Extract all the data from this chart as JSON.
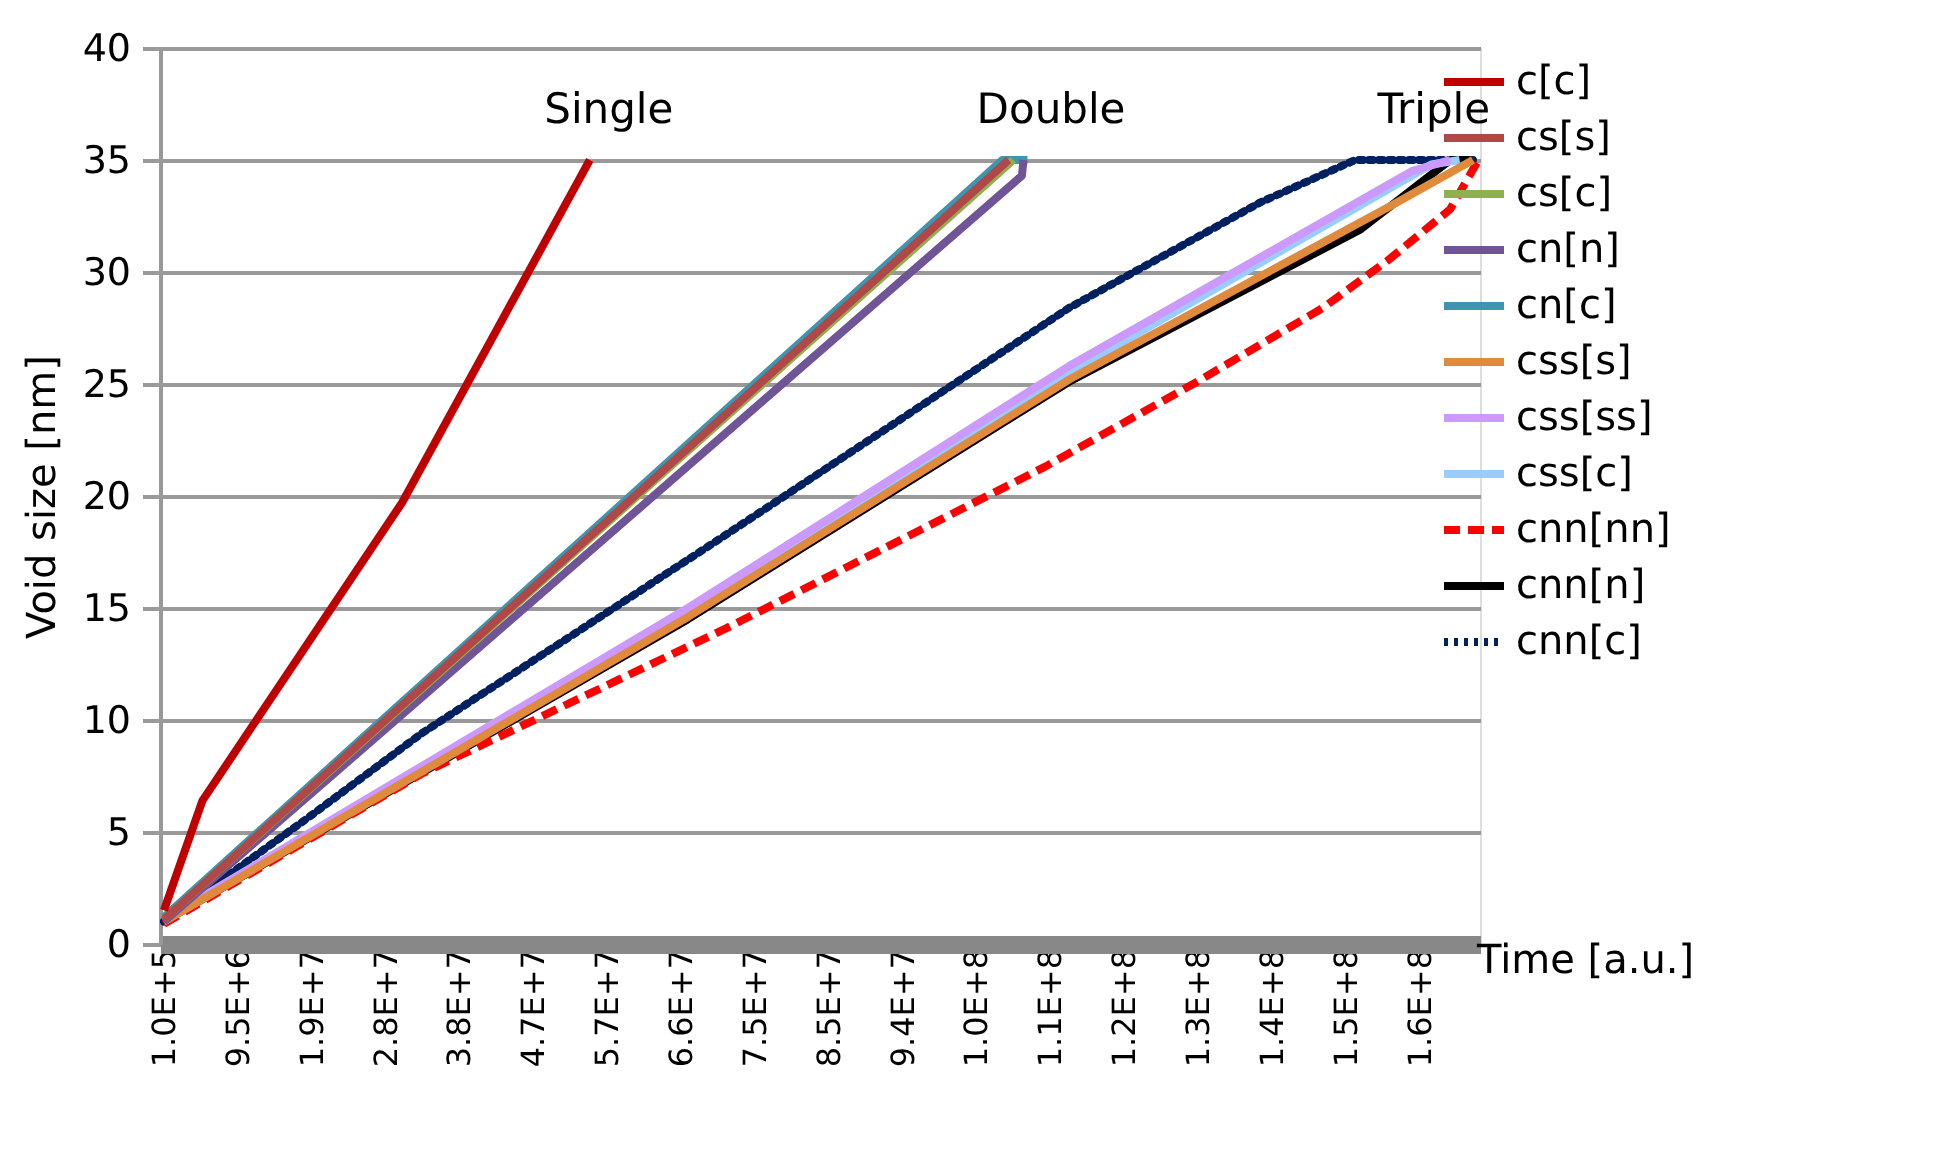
{
  "chart_data": {
    "type": "line",
    "xlabel": "Time [a.u.]",
    "ylabel": "Void size [nm]",
    "xlim": [
      -400000,
      167600000
    ],
    "ylim": [
      0,
      40
    ],
    "xticks": [
      {
        "value": 100000,
        "label": "1.0E+5"
      },
      {
        "value": 9500000,
        "label": "9.5E+6"
      },
      {
        "value": 18900000,
        "label": "1.9E+7"
      },
      {
        "value": 28300000,
        "label": "2.8E+7"
      },
      {
        "value": 37700000,
        "label": "3.8E+7"
      },
      {
        "value": 47100000,
        "label": "4.7E+7"
      },
      {
        "value": 56500000,
        "label": "5.7E+7"
      },
      {
        "value": 65900000,
        "label": "6.6E+7"
      },
      {
        "value": 75300000,
        "label": "7.5E+7"
      },
      {
        "value": 84700000,
        "label": "8.5E+7"
      },
      {
        "value": 94100000,
        "label": "9.4E+7"
      },
      {
        "value": 103500000,
        "label": "1.0E+8"
      },
      {
        "value": 112900000,
        "label": "1.1E+8"
      },
      {
        "value": 122300000,
        "label": "1.2E+8"
      },
      {
        "value": 131700000,
        "label": "1.3E+8"
      },
      {
        "value": 141100000,
        "label": "1.4E+8"
      },
      {
        "value": 150500000,
        "label": "1.5E+8"
      },
      {
        "value": 159900000,
        "label": "1.6E+8"
      }
    ],
    "yticks": [
      0,
      5,
      10,
      15,
      20,
      25,
      30,
      35,
      40
    ],
    "grid": "y",
    "legend": "right",
    "marker": "none",
    "annotations": [
      "Single",
      "Double",
      "Triple"
    ],
    "series": [
      {
        "name": "c[c]",
        "color": "#c00000",
        "line_style": "solid",
        "x": [
          100000,
          5000000,
          30400000,
          54300000
        ],
        "values": [
          1.5,
          6.4,
          19.7,
          35
        ]
      },
      {
        "name": "cs[s]",
        "color": "#b04848",
        "line_style": "solid",
        "x": [
          100000,
          107600000
        ],
        "values": [
          1.1,
          35
        ]
      },
      {
        "name": "cs[c]",
        "color": "#8eb04e",
        "line_style": "solid",
        "x": [
          100000,
          108200000
        ],
        "values": [
          1.1,
          35
        ]
      },
      {
        "name": "cn[n]",
        "color": "#6f5597",
        "line_style": "solid",
        "x": [
          100000,
          109300000,
          109500000
        ],
        "values": [
          1,
          34.3,
          35
        ]
      },
      {
        "name": "cn[c]",
        "color": "#3e95ad",
        "line_style": "solid",
        "x": [
          100000,
          106800000,
          110000000
        ],
        "values": [
          1.2,
          35,
          35
        ]
      },
      {
        "name": "css[s]",
        "color": "#e08a3c",
        "line_style": "solid",
        "x": [
          100000,
          66800000,
          115300000,
          156500000,
          166700000
        ],
        "values": [
          1,
          14.6,
          25.2,
          33,
          35
        ]
      },
      {
        "name": "css[ss]",
        "color": "#cc99ff",
        "line_style": "solid",
        "x": [
          100000,
          66800000,
          115300000,
          158900000,
          163800000
        ],
        "values": [
          1.1,
          15.0,
          25.8,
          34.5,
          35
        ]
      },
      {
        "name": "css[c]",
        "color": "#99ccff",
        "line_style": "solid",
        "x": [
          100000,
          66800000,
          115300000,
          161400000,
          165000000
        ],
        "values": [
          1,
          14.8,
          25.5,
          34.8,
          35
        ]
      },
      {
        "name": "cnn[nn]",
        "color": "#ff0000",
        "line_style": "dashed",
        "x": [
          100000,
          32900000,
          71700000,
          112200000,
          131600000,
          147600000,
          155800000,
          163800000,
          167400000
        ],
        "values": [
          0.9,
          7.6,
          14.1,
          21.3,
          25.1,
          28.4,
          30.5,
          32.8,
          35
        ]
      },
      {
        "name": "cnn[n]",
        "color": "#000000",
        "line_style": "solid",
        "x": [
          100000,
          66800000,
          115300000,
          152400000,
          163800000,
          166200000
        ],
        "values": [
          1,
          14.5,
          25.1,
          31.9,
          35,
          35
        ]
      },
      {
        "name": "cnn[c]",
        "color": "#002060",
        "line_style": "dotted",
        "x": [
          100000,
          18300000,
          32900000,
          70900000,
          115300000,
          139600000,
          151700000,
          166700000
        ],
        "values": [
          1,
          5.6,
          9.4,
          18.1,
          28.4,
          33.1,
          35,
          35
        ]
      }
    ]
  }
}
